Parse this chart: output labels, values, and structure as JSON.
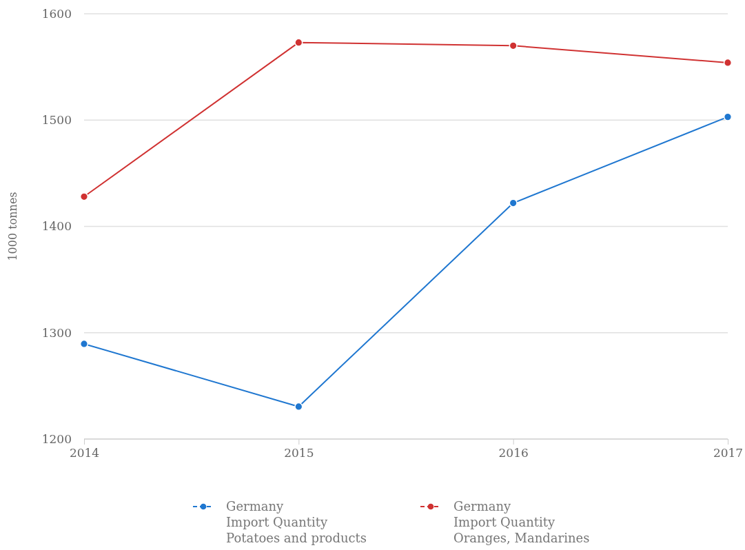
{
  "chart_data": {
    "type": "line",
    "ylabel": "1000 tonnes",
    "x": [
      2014,
      2015,
      2016,
      2017
    ],
    "xlim": [
      2014,
      2017
    ],
    "xticks": [
      2014,
      2015,
      2016,
      2017
    ],
    "ylim": [
      1200,
      1600
    ],
    "yticks": [
      1200,
      1300,
      1400,
      1500,
      1600
    ],
    "grid": "y",
    "legend": "bottom",
    "marker": "circle",
    "line_style": "solid",
    "series": [
      {
        "name": "Germany\nImport Quantity\nPotatoes and products",
        "color": "#1f77d0",
        "values": [
          1289.5,
          1230.5,
          1422,
          1503
        ]
      },
      {
        "name": "Germany\nImport Quantity\nOranges, Mandarines",
        "color": "#d03232",
        "values": [
          1428,
          1573,
          1570,
          1554
        ]
      }
    ]
  }
}
